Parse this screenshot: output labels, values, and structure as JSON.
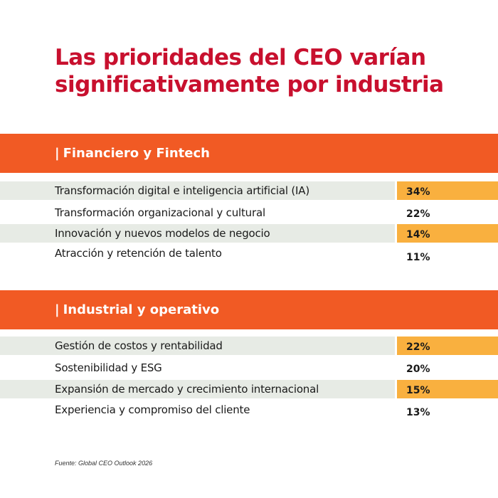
{
  "title": "Las prioridades del CEO varían significativamente por industria",
  "source": "Fuente: Global CEO Outlook 2026",
  "colors": {
    "title": "#c8102e",
    "section_bar": "#f15a24",
    "highlight": "#f9b03f",
    "row_shade": "#e7ebe5"
  },
  "chart_data": {
    "type": "table",
    "title": "Las prioridades del CEO varían significativamente por industria",
    "groups": [
      {
        "name": "Financiero y Fintech",
        "rows": [
          {
            "label": "Transformación digital e inteligencia artificial (IA)",
            "value": "34%",
            "percent": 34
          },
          {
            "label": "Transformación organizacional y cultural",
            "value": "22%",
            "percent": 22
          },
          {
            "label": "Innovación y nuevos modelos de negocio",
            "value": "14%",
            "percent": 14
          },
          {
            "label": "Atracción y retención de talento",
            "value": "11%",
            "percent": 11
          }
        ]
      },
      {
        "name": "Industrial y operativo",
        "rows": [
          {
            "label": "Gestión de costos y rentabilidad",
            "value": "22%",
            "percent": 22
          },
          {
            "label": "Sostenibilidad y ESG",
            "value": "20%",
            "percent": 20
          },
          {
            "label": "Expansión de mercado y crecimiento internacional",
            "value": "15%",
            "percent": 15
          },
          {
            "label": "Experiencia y compromiso del cliente",
            "value": "13%",
            "percent": 13
          }
        ]
      }
    ]
  }
}
